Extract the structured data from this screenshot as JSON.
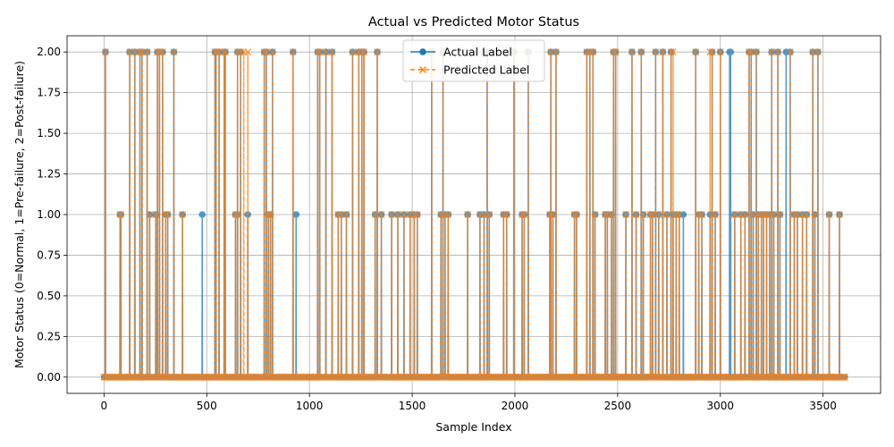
{
  "chart_data": {
    "type": "line",
    "title": "Actual vs Predicted Motor Status",
    "xlabel": "Sample Index",
    "ylabel": "Motor Status (0=Normal, 1=Pre-failure, 2=Post-failure)",
    "xlim": [
      -180,
      3780
    ],
    "ylim": [
      -0.1,
      2.1
    ],
    "xticks": [
      0,
      500,
      1000,
      1500,
      2000,
      2500,
      3000,
      3500
    ],
    "yticks": [
      "0.00",
      "0.25",
      "0.50",
      "0.75",
      "1.00",
      "1.25",
      "1.50",
      "1.75",
      "2.00"
    ],
    "grid": true,
    "legend_position": "top-center",
    "n_samples": 3610,
    "colors": {
      "actual": "#1f77b4",
      "predicted": "#ff7f0e"
    },
    "series": [
      {
        "name": "Actual Label",
        "style": "solid, circle markers",
        "nonzero": [
          [
            7,
            2
          ],
          [
            78,
            1
          ],
          [
            82,
            1
          ],
          [
            125,
            2
          ],
          [
            150,
            2
          ],
          [
            175,
            2
          ],
          [
            185,
            2
          ],
          [
            210,
            2
          ],
          [
            222,
            1
          ],
          [
            252,
            1
          ],
          [
            260,
            2
          ],
          [
            270,
            2
          ],
          [
            285,
            2
          ],
          [
            300,
            1
          ],
          [
            310,
            1
          ],
          [
            340,
            2
          ],
          [
            382,
            1
          ],
          [
            478,
            1
          ],
          [
            640,
            1
          ],
          [
            650,
            1
          ],
          [
            540,
            2
          ],
          [
            545,
            2
          ],
          [
            560,
            2
          ],
          [
            585,
            2
          ],
          [
            590,
            2
          ],
          [
            650,
            2
          ],
          [
            665,
            2
          ],
          [
            700,
            1
          ],
          [
            780,
            2
          ],
          [
            790,
            2
          ],
          [
            800,
            1
          ],
          [
            810,
            1
          ],
          [
            820,
            2
          ],
          [
            920,
            2
          ],
          [
            935,
            1
          ],
          [
            1040,
            2
          ],
          [
            1050,
            2
          ],
          [
            1080,
            2
          ],
          [
            1110,
            2
          ],
          [
            1140,
            1
          ],
          [
            1155,
            1
          ],
          [
            1180,
            1
          ],
          [
            1210,
            2
          ],
          [
            1240,
            2
          ],
          [
            1255,
            2
          ],
          [
            1265,
            2
          ],
          [
            1320,
            1
          ],
          [
            1330,
            2
          ],
          [
            1350,
            1
          ],
          [
            1400,
            1
          ],
          [
            1430,
            1
          ],
          [
            1460,
            1
          ],
          [
            1490,
            1
          ],
          [
            1510,
            1
          ],
          [
            1525,
            1
          ],
          [
            1595,
            2
          ],
          [
            1640,
            1
          ],
          [
            1650,
            2
          ],
          [
            1660,
            1
          ],
          [
            1675,
            1
          ],
          [
            1770,
            1
          ],
          [
            1830,
            1
          ],
          [
            1850,
            1
          ],
          [
            1865,
            2
          ],
          [
            1875,
            1
          ],
          [
            1945,
            1
          ],
          [
            1960,
            1
          ],
          [
            1995,
            2
          ],
          [
            2035,
            1
          ],
          [
            2045,
            1
          ],
          [
            2065,
            2
          ],
          [
            2170,
            1
          ],
          [
            2175,
            2
          ],
          [
            2185,
            1
          ],
          [
            2200,
            2
          ],
          [
            2290,
            1
          ],
          [
            2300,
            1
          ],
          [
            2350,
            2
          ],
          [
            2365,
            2
          ],
          [
            2380,
            2
          ],
          [
            2390,
            1
          ],
          [
            2440,
            1
          ],
          [
            2450,
            1
          ],
          [
            2470,
            1
          ],
          [
            2480,
            2
          ],
          [
            2490,
            2
          ],
          [
            2540,
            1
          ],
          [
            2570,
            2
          ],
          [
            2590,
            1
          ],
          [
            2615,
            2
          ],
          [
            2625,
            1
          ],
          [
            2660,
            1
          ],
          [
            2670,
            1
          ],
          [
            2685,
            2
          ],
          [
            2700,
            1
          ],
          [
            2720,
            2
          ],
          [
            2740,
            1
          ],
          [
            2760,
            2
          ],
          [
            2770,
            1
          ],
          [
            2785,
            1
          ],
          [
            2800,
            1
          ],
          [
            2820,
            1
          ],
          [
            2880,
            2
          ],
          [
            2895,
            1
          ],
          [
            2910,
            1
          ],
          [
            2950,
            1
          ],
          [
            2960,
            2
          ],
          [
            2975,
            1
          ],
          [
            3000,
            2
          ],
          [
            3045,
            2
          ],
          [
            3050,
            2
          ],
          [
            3070,
            1
          ],
          [
            3100,
            1
          ],
          [
            3120,
            1
          ],
          [
            3140,
            2
          ],
          [
            3150,
            2
          ],
          [
            3160,
            1
          ],
          [
            3175,
            2
          ],
          [
            3185,
            1
          ],
          [
            3200,
            1
          ],
          [
            3210,
            1
          ],
          [
            3225,
            1
          ],
          [
            3240,
            1
          ],
          [
            3250,
            2
          ],
          [
            3260,
            1
          ],
          [
            3280,
            2
          ],
          [
            3290,
            1
          ],
          [
            3320,
            2
          ],
          [
            3340,
            2
          ],
          [
            3360,
            1
          ],
          [
            3375,
            1
          ],
          [
            3400,
            1
          ],
          [
            3420,
            1
          ],
          [
            3450,
            2
          ],
          [
            3460,
            1
          ],
          [
            3475,
            2
          ],
          [
            3530,
            1
          ],
          [
            3580,
            1
          ]
        ]
      },
      {
        "name": "Predicted Label",
        "style": "dashed, x markers",
        "nonzero": [
          [
            7,
            2
          ],
          [
            78,
            1
          ],
          [
            82,
            1
          ],
          [
            125,
            2
          ],
          [
            150,
            2
          ],
          [
            175,
            2
          ],
          [
            185,
            2
          ],
          [
            210,
            2
          ],
          [
            222,
            1
          ],
          [
            252,
            1
          ],
          [
            260,
            2
          ],
          [
            270,
            2
          ],
          [
            285,
            2
          ],
          [
            300,
            1
          ],
          [
            310,
            1
          ],
          [
            340,
            2
          ],
          [
            382,
            1
          ],
          [
            640,
            1
          ],
          [
            650,
            1
          ],
          [
            540,
            2
          ],
          [
            545,
            2
          ],
          [
            560,
            2
          ],
          [
            585,
            2
          ],
          [
            590,
            2
          ],
          [
            650,
            2
          ],
          [
            665,
            2
          ],
          [
            680,
            2
          ],
          [
            700,
            2
          ],
          [
            780,
            2
          ],
          [
            790,
            2
          ],
          [
            800,
            1
          ],
          [
            810,
            1
          ],
          [
            820,
            2
          ],
          [
            920,
            2
          ],
          [
            1040,
            2
          ],
          [
            1050,
            2
          ],
          [
            1080,
            2
          ],
          [
            1110,
            2
          ],
          [
            1140,
            1
          ],
          [
            1155,
            1
          ],
          [
            1180,
            1
          ],
          [
            1210,
            2
          ],
          [
            1240,
            2
          ],
          [
            1255,
            2
          ],
          [
            1265,
            2
          ],
          [
            1320,
            1
          ],
          [
            1330,
            2
          ],
          [
            1350,
            1
          ],
          [
            1400,
            1
          ],
          [
            1430,
            1
          ],
          [
            1460,
            1
          ],
          [
            1490,
            1
          ],
          [
            1510,
            1
          ],
          [
            1525,
            1
          ],
          [
            1595,
            2
          ],
          [
            1640,
            1
          ],
          [
            1650,
            2
          ],
          [
            1660,
            1
          ],
          [
            1675,
            1
          ],
          [
            1770,
            1
          ],
          [
            1830,
            1
          ],
          [
            1850,
            1
          ],
          [
            1865,
            2
          ],
          [
            1875,
            1
          ],
          [
            1945,
            1
          ],
          [
            1960,
            1
          ],
          [
            1995,
            2
          ],
          [
            2035,
            1
          ],
          [
            2045,
            1
          ],
          [
            2065,
            2
          ],
          [
            2170,
            1
          ],
          [
            2175,
            2
          ],
          [
            2185,
            1
          ],
          [
            2200,
            2
          ],
          [
            2290,
            1
          ],
          [
            2300,
            1
          ],
          [
            2350,
            2
          ],
          [
            2365,
            2
          ],
          [
            2380,
            2
          ],
          [
            2390,
            1
          ],
          [
            2440,
            1
          ],
          [
            2450,
            1
          ],
          [
            2470,
            1
          ],
          [
            2480,
            2
          ],
          [
            2490,
            2
          ],
          [
            2540,
            1
          ],
          [
            2570,
            2
          ],
          [
            2590,
            1
          ],
          [
            2615,
            2
          ],
          [
            2625,
            1
          ],
          [
            2660,
            1
          ],
          [
            2670,
            1
          ],
          [
            2685,
            2
          ],
          [
            2700,
            1
          ],
          [
            2720,
            2
          ],
          [
            2740,
            1
          ],
          [
            2760,
            2
          ],
          [
            2770,
            2
          ],
          [
            2785,
            1
          ],
          [
            2800,
            1
          ],
          [
            2880,
            2
          ],
          [
            2895,
            1
          ],
          [
            2910,
            1
          ],
          [
            2950,
            2
          ],
          [
            2960,
            2
          ],
          [
            2975,
            1
          ],
          [
            3000,
            2
          ],
          [
            3070,
            1
          ],
          [
            3100,
            1
          ],
          [
            3120,
            1
          ],
          [
            3140,
            2
          ],
          [
            3150,
            2
          ],
          [
            3160,
            1
          ],
          [
            3175,
            2
          ],
          [
            3185,
            1
          ],
          [
            3200,
            1
          ],
          [
            3210,
            1
          ],
          [
            3225,
            1
          ],
          [
            3240,
            1
          ],
          [
            3250,
            2
          ],
          [
            3260,
            1
          ],
          [
            3280,
            2
          ],
          [
            3290,
            1
          ],
          [
            3340,
            2
          ],
          [
            3360,
            1
          ],
          [
            3375,
            1
          ],
          [
            3400,
            1
          ],
          [
            3420,
            1
          ],
          [
            3450,
            2
          ],
          [
            3460,
            1
          ],
          [
            3475,
            2
          ],
          [
            3530,
            1
          ],
          [
            3580,
            1
          ]
        ]
      }
    ]
  }
}
